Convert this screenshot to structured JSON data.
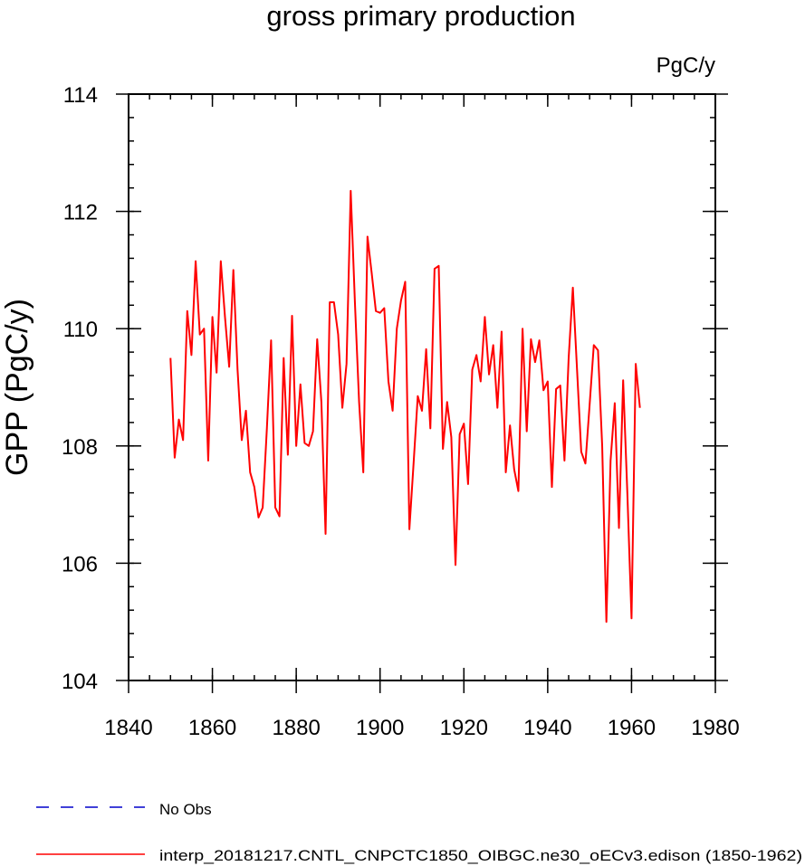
{
  "chart_data": {
    "type": "line",
    "title": "gross primary production",
    "units_label": "PgC/y",
    "ylabel": "GPP  (PgC/y)",
    "xlabel": "",
    "xlim": [
      1840,
      1980
    ],
    "ylim": [
      104,
      114
    ],
    "xticks": [
      1840,
      1860,
      1880,
      1900,
      1920,
      1940,
      1960,
      1980
    ],
    "yticks": [
      104,
      106,
      108,
      110,
      112,
      114
    ],
    "x_minor_step": 5,
    "y_minor_step": 0.4,
    "grid": false,
    "legend": [
      {
        "label": "No Obs",
        "color": "#0000cc",
        "style": "dashed"
      },
      {
        "label": "interp_20181217.CNTL_CNPCTC1850_OIBGC.ne30_oECv3.edison (1850-1962)",
        "color": "#ff0000",
        "style": "solid"
      }
    ],
    "series": [
      {
        "name": "interp_20181217.CNTL_CNPCTC1850_OIBGC.ne30_oECv3.edison (1850-1962)",
        "color": "#ff0000",
        "x_start": 1850,
        "x_step": 1,
        "values": [
          109.5,
          107.8,
          108.45,
          108.1,
          110.3,
          109.55,
          111.15,
          109.9,
          110.0,
          107.75,
          110.2,
          109.25,
          111.15,
          110.2,
          109.35,
          111.0,
          109.3,
          108.1,
          108.6,
          107.55,
          107.3,
          106.78,
          106.95,
          108.3,
          109.8,
          106.95,
          106.8,
          109.5,
          107.85,
          110.22,
          108.0,
          109.05,
          108.05,
          108.0,
          108.25,
          109.82,
          108.75,
          106.5,
          110.45,
          110.45,
          109.9,
          108.65,
          109.4,
          112.35,
          110.45,
          108.75,
          107.55,
          111.57,
          110.95,
          110.3,
          110.27,
          110.35,
          109.1,
          108.6,
          110.0,
          110.48,
          110.8,
          106.58,
          107.7,
          108.85,
          108.6,
          109.65,
          108.3,
          111.02,
          111.07,
          107.95,
          108.75,
          108.15,
          105.97,
          108.2,
          108.38,
          107.35,
          109.3,
          109.55,
          109.1,
          110.2,
          109.22,
          109.72,
          108.65,
          109.95,
          107.55,
          108.35,
          107.6,
          107.23,
          110.0,
          108.25,
          109.82,
          109.43,
          109.8,
          108.95,
          109.1,
          107.3,
          108.97,
          109.03,
          107.75,
          109.5,
          110.7,
          109.3,
          107.9,
          107.7,
          108.7,
          109.72,
          109.63,
          108.0,
          105.0,
          107.75,
          108.73,
          106.6,
          109.12,
          107.2,
          105.06,
          109.4,
          108.65
        ]
      }
    ]
  }
}
